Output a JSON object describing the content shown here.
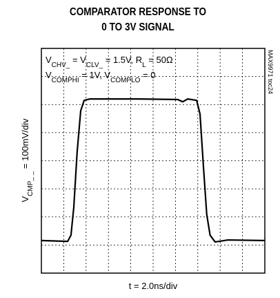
{
  "chart_data": {
    "type": "line",
    "title": [
      "COMPARATOR RESPONSE TO",
      "0 TO 3V SIGNAL"
    ],
    "annotations": [
      [
        {
          "text": "V"
        },
        {
          "sub": "CHV_"
        },
        {
          "text": " = V"
        },
        {
          "sub": "CLV_"
        },
        {
          "text": " = 1.5V, R"
        },
        {
          "sub": "L"
        },
        {
          "text": " = 50Ω"
        }
      ],
      [
        {
          "text": "V"
        },
        {
          "sub": "COMPHI"
        },
        {
          "text": " = 1V, V"
        },
        {
          "sub": "COMPLO"
        },
        {
          "text": " = 0"
        }
      ]
    ],
    "side_label": "MAX9971 toc24",
    "x_label": "t = 2.0ns/div",
    "y_label": [
      {
        "text": "V"
      },
      {
        "sub": "CMP_ _"
      },
      {
        "text": " = 100mV/div"
      }
    ],
    "xlim": [
      0,
      20
    ],
    "ylim": [
      0,
      800
    ],
    "grid": true,
    "x": [
      0,
      2.35,
      2.65,
      2.9,
      3.2,
      3.52,
      3.83,
      4.32,
      8.64,
      12.2,
      12.65,
      13.1,
      13.9,
      14.2,
      14.5,
      14.8,
      15.1,
      15.55,
      16.7,
      20
    ],
    "series": [
      {
        "color": "#000000",
        "values": [
          116,
          113,
          135,
          234,
          431,
          578,
          615,
          620,
          620,
          618,
          610,
          620,
          615,
          566,
          382,
          209,
          135,
          111,
          118,
          116
        ]
      }
    ]
  }
}
